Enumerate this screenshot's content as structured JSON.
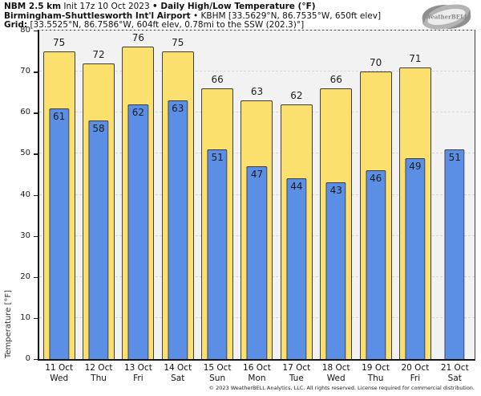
{
  "header": {
    "line1": {
      "model": "NBM 2.5 km",
      "init": " Init 17z 10 Oct 2023 ",
      "product": "• Daily High/Low Temperature (°F)"
    },
    "line2": {
      "station": "Birmingham-Shuttlesworth Int'l Airport",
      "details": " • KBHM [33.5629°N, 86.7535°W, 650ft elev]"
    },
    "line3": {
      "label": "Grid:",
      "details": " [33.5525°N, 86.7586°W, 604ft elev, 0.78mi to the SSW (202.3)°]"
    }
  },
  "logo": {
    "text": "WeatherBELL"
  },
  "chart_data": {
    "type": "bar",
    "title": "Daily High/Low Temperature (°F)",
    "ylabel": "Temperature [°F]",
    "ylim": [
      0,
      80
    ],
    "yticks": [
      0,
      10,
      20,
      30,
      40,
      50,
      60,
      70,
      80
    ],
    "grid": true,
    "legend": "none",
    "categories": [
      {
        "date": "11 Oct",
        "day": "Wed"
      },
      {
        "date": "12 Oct",
        "day": "Thu"
      },
      {
        "date": "13 Oct",
        "day": "Fri"
      },
      {
        "date": "14 Oct",
        "day": "Sat"
      },
      {
        "date": "15 Oct",
        "day": "Sun"
      },
      {
        "date": "16 Oct",
        "day": "Mon"
      },
      {
        "date": "17 Oct",
        "day": "Tue"
      },
      {
        "date": "18 Oct",
        "day": "Wed"
      },
      {
        "date": "19 Oct",
        "day": "Thu"
      },
      {
        "date": "20 Oct",
        "day": "Fri"
      },
      {
        "date": "21 Oct",
        "day": "Sat"
      }
    ],
    "series": [
      {
        "name": "High",
        "color": "#FBE06E",
        "values": [
          75,
          72,
          76,
          75,
          66,
          63,
          62,
          66,
          70,
          71,
          null
        ]
      },
      {
        "name": "Low",
        "color": "#5B8EE5",
        "values": [
          61,
          58,
          62,
          63,
          51,
          47,
          44,
          43,
          46,
          49,
          51
        ]
      }
    ]
  },
  "colors": {
    "high_bar": "#FBE06E",
    "low_bar": "#5B8EE5",
    "bar_border": "#3b3b3b",
    "plot_background": "#f2f2f2",
    "gridline": "#d7d7d7"
  },
  "footer": {
    "copyright": "© 2023 WeatherBELL Analytics, LLC. All rights reserved. License required for commercial distribution."
  }
}
